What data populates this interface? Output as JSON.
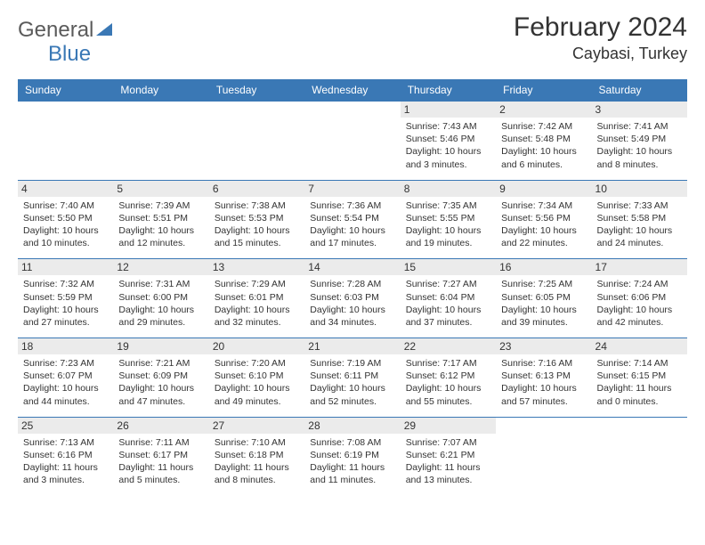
{
  "brand": {
    "name1": "General",
    "name2": "Blue"
  },
  "title": {
    "month": "February 2024",
    "location": "Caybasi, Turkey"
  },
  "colors": {
    "accent": "#3a78b5",
    "daynum_bg": "#ebebeb",
    "text": "#333333",
    "logo_gray": "#5b5b5b"
  },
  "weekdays": [
    "Sunday",
    "Monday",
    "Tuesday",
    "Wednesday",
    "Thursday",
    "Friday",
    "Saturday"
  ],
  "weeks": [
    [
      {
        "day": null
      },
      {
        "day": null
      },
      {
        "day": null
      },
      {
        "day": null
      },
      {
        "day": 1,
        "sunrise": "7:43 AM",
        "sunset": "5:46 PM",
        "daylight": "10 hours and 3 minutes."
      },
      {
        "day": 2,
        "sunrise": "7:42 AM",
        "sunset": "5:48 PM",
        "daylight": "10 hours and 6 minutes."
      },
      {
        "day": 3,
        "sunrise": "7:41 AM",
        "sunset": "5:49 PM",
        "daylight": "10 hours and 8 minutes."
      }
    ],
    [
      {
        "day": 4,
        "sunrise": "7:40 AM",
        "sunset": "5:50 PM",
        "daylight": "10 hours and 10 minutes."
      },
      {
        "day": 5,
        "sunrise": "7:39 AM",
        "sunset": "5:51 PM",
        "daylight": "10 hours and 12 minutes."
      },
      {
        "day": 6,
        "sunrise": "7:38 AM",
        "sunset": "5:53 PM",
        "daylight": "10 hours and 15 minutes."
      },
      {
        "day": 7,
        "sunrise": "7:36 AM",
        "sunset": "5:54 PM",
        "daylight": "10 hours and 17 minutes."
      },
      {
        "day": 8,
        "sunrise": "7:35 AM",
        "sunset": "5:55 PM",
        "daylight": "10 hours and 19 minutes."
      },
      {
        "day": 9,
        "sunrise": "7:34 AM",
        "sunset": "5:56 PM",
        "daylight": "10 hours and 22 minutes."
      },
      {
        "day": 10,
        "sunrise": "7:33 AM",
        "sunset": "5:58 PM",
        "daylight": "10 hours and 24 minutes."
      }
    ],
    [
      {
        "day": 11,
        "sunrise": "7:32 AM",
        "sunset": "5:59 PM",
        "daylight": "10 hours and 27 minutes."
      },
      {
        "day": 12,
        "sunrise": "7:31 AM",
        "sunset": "6:00 PM",
        "daylight": "10 hours and 29 minutes."
      },
      {
        "day": 13,
        "sunrise": "7:29 AM",
        "sunset": "6:01 PM",
        "daylight": "10 hours and 32 minutes."
      },
      {
        "day": 14,
        "sunrise": "7:28 AM",
        "sunset": "6:03 PM",
        "daylight": "10 hours and 34 minutes."
      },
      {
        "day": 15,
        "sunrise": "7:27 AM",
        "sunset": "6:04 PM",
        "daylight": "10 hours and 37 minutes."
      },
      {
        "day": 16,
        "sunrise": "7:25 AM",
        "sunset": "6:05 PM",
        "daylight": "10 hours and 39 minutes."
      },
      {
        "day": 17,
        "sunrise": "7:24 AM",
        "sunset": "6:06 PM",
        "daylight": "10 hours and 42 minutes."
      }
    ],
    [
      {
        "day": 18,
        "sunrise": "7:23 AM",
        "sunset": "6:07 PM",
        "daylight": "10 hours and 44 minutes."
      },
      {
        "day": 19,
        "sunrise": "7:21 AM",
        "sunset": "6:09 PM",
        "daylight": "10 hours and 47 minutes."
      },
      {
        "day": 20,
        "sunrise": "7:20 AM",
        "sunset": "6:10 PM",
        "daylight": "10 hours and 49 minutes."
      },
      {
        "day": 21,
        "sunrise": "7:19 AM",
        "sunset": "6:11 PM",
        "daylight": "10 hours and 52 minutes."
      },
      {
        "day": 22,
        "sunrise": "7:17 AM",
        "sunset": "6:12 PM",
        "daylight": "10 hours and 55 minutes."
      },
      {
        "day": 23,
        "sunrise": "7:16 AM",
        "sunset": "6:13 PM",
        "daylight": "10 hours and 57 minutes."
      },
      {
        "day": 24,
        "sunrise": "7:14 AM",
        "sunset": "6:15 PM",
        "daylight": "11 hours and 0 minutes."
      }
    ],
    [
      {
        "day": 25,
        "sunrise": "7:13 AM",
        "sunset": "6:16 PM",
        "daylight": "11 hours and 3 minutes."
      },
      {
        "day": 26,
        "sunrise": "7:11 AM",
        "sunset": "6:17 PM",
        "daylight": "11 hours and 5 minutes."
      },
      {
        "day": 27,
        "sunrise": "7:10 AM",
        "sunset": "6:18 PM",
        "daylight": "11 hours and 8 minutes."
      },
      {
        "day": 28,
        "sunrise": "7:08 AM",
        "sunset": "6:19 PM",
        "daylight": "11 hours and 11 minutes."
      },
      {
        "day": 29,
        "sunrise": "7:07 AM",
        "sunset": "6:21 PM",
        "daylight": "11 hours and 13 minutes."
      },
      {
        "day": null
      },
      {
        "day": null
      }
    ]
  ],
  "labels": {
    "sunrise": "Sunrise:",
    "sunset": "Sunset:",
    "daylight": "Daylight:"
  }
}
